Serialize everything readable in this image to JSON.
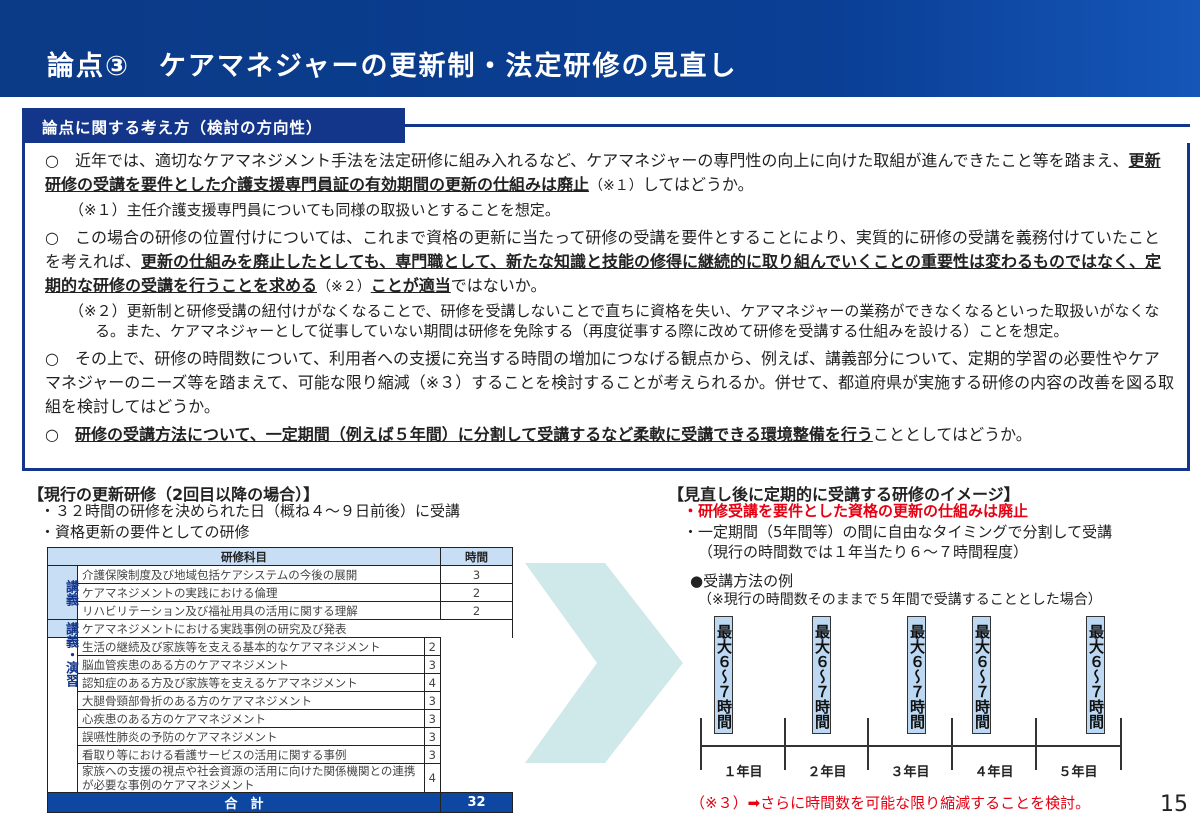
{
  "header": {
    "title": "論点③　ケアマネジャーの更新制・法定研修の見直し"
  },
  "section": {
    "label": "論点に関する考え方（検討の方向性）"
  },
  "paragraphs": {
    "p1": [
      "○　近年では、適切なケアマネジメント手法を法定研修に組み入れるなど、ケアマネジャーの専門性の向上に向けた取組が進んできたこと等を踏まえ、",
      "更新研修の受講を要件とした介護支援専門員証の有効期間の更新の仕組みは廃止",
      "（※１）",
      "してはどうか。"
    ],
    "n1": "（※１）主任介護支援専門員についても同様の取扱いとすることを想定。",
    "p2": [
      "○　この場合の研修の位置付けについては、これまで資格の更新に当たって研修の受講を要件とすることにより、実質的に研修の受講を義務付けていたことを考えれば、",
      "更新の仕組みを廃止したとしても、専門職として、新たな知識と技能の修得に継続的に取り組んでいくことの重要性は変わるものではなく、定期的な研修の受講を行うことを求める",
      "（※２）",
      "ことが適当",
      "ではないか。"
    ],
    "n2": "（※２）更新制と研修受講の紐付けがなくなることで、研修を受講しないことで直ちに資格を失い、ケアマネジャーの業務ができなくなるといった取扱いがなくなる。また、ケアマネジャーとして従事していない期間は研修を免除する（再度従事する際に改めて研修を受講する仕組みを設ける）ことを想定。",
    "p3": "○　その上で、研修の時間数について、利用者への支援に充当する時間の増加につなげる観点から、例えば、講義部分について、定期的学習の必要性やケアマネジャーのニーズ等を踏まえて、可能な限り縮減（※３）することを検討することが考えられるか。併せて、都道府県が実施する研修の内容の改善を図る取組を検討してはどうか。",
    "p4": [
      "○　",
      "研修の受講方法について、一定期間（例えば５年間）に分割して受講するなど柔軟に受講できる環境整備を行う",
      "こととしてはどうか。"
    ]
  },
  "current": {
    "heading": "【現行の更新研修（2回目以降の場合）】",
    "bullets": [
      "・３２時間の研修を決められた日（概ね４～９日前後）に受講",
      "・資格更新の要件としての研修"
    ],
    "table": {
      "headers": [
        "研修科目",
        "時間"
      ],
      "group1": "講義",
      "group2": "講義・演習",
      "lecture": [
        [
          "介護保険制度及び地域包括ケアシステムの今後の展開",
          "3"
        ],
        [
          "ケアマネジメントの実践における倫理",
          "2"
        ],
        [
          "リハビリテーション及び福祉用具の活用に関する理解",
          "2"
        ]
      ],
      "practice_title": "ケアマネジメントにおける実践事例の研究及び発表",
      "practice": [
        [
          "生活の継続及び家族等を支える基本的なケアマネジメント",
          "2"
        ],
        [
          "脳血管疾患のある方のケアマネジメント",
          "3"
        ],
        [
          "認知症のある方及び家族等を支えるケアマネジメント",
          "4"
        ],
        [
          "大腿骨頸部骨折のある方のケアマネジメント",
          "3"
        ],
        [
          "心疾患のある方のケアマネジメント",
          "3"
        ],
        [
          "誤嚥性肺炎の予防のケアマネジメント",
          "3"
        ],
        [
          "看取り等における看護サービスの活用に関する事例",
          "3"
        ],
        [
          "家族への支援の視点や社会資源の活用に向けた関係機関との連携が必要な事例のケアマネジメント",
          "4"
        ]
      ],
      "total_label": "合　計",
      "total": "32"
    }
  },
  "proposed": {
    "heading": "【見直し後に定期的に受講する研修のイメージ】",
    "red": "・研修受講を要件とした資格の更新の仕組みは廃止",
    "b2": "・一定期間（5年間等）の間に自由なタイミングで分割して受講",
    "b2b": "（現行の時間数では１年当たり６～７時間程度）",
    "example": "●受講方法の例",
    "example_note": "（※現行の時間数そのままで５年間で受講することとした場合）",
    "bar_label": "最大６～７時間",
    "years": [
      "１年目",
      "２年目",
      "３年目",
      "４年目",
      "５年目"
    ],
    "footnote": "（※３）➡さらに時間数を可能な限り縮減することを検討。"
  },
  "page_number": "15",
  "colors": {
    "navy": "#13358a",
    "light_blue": "#c7def5",
    "red": "#e60012",
    "arrow": "#cfe8ea"
  }
}
